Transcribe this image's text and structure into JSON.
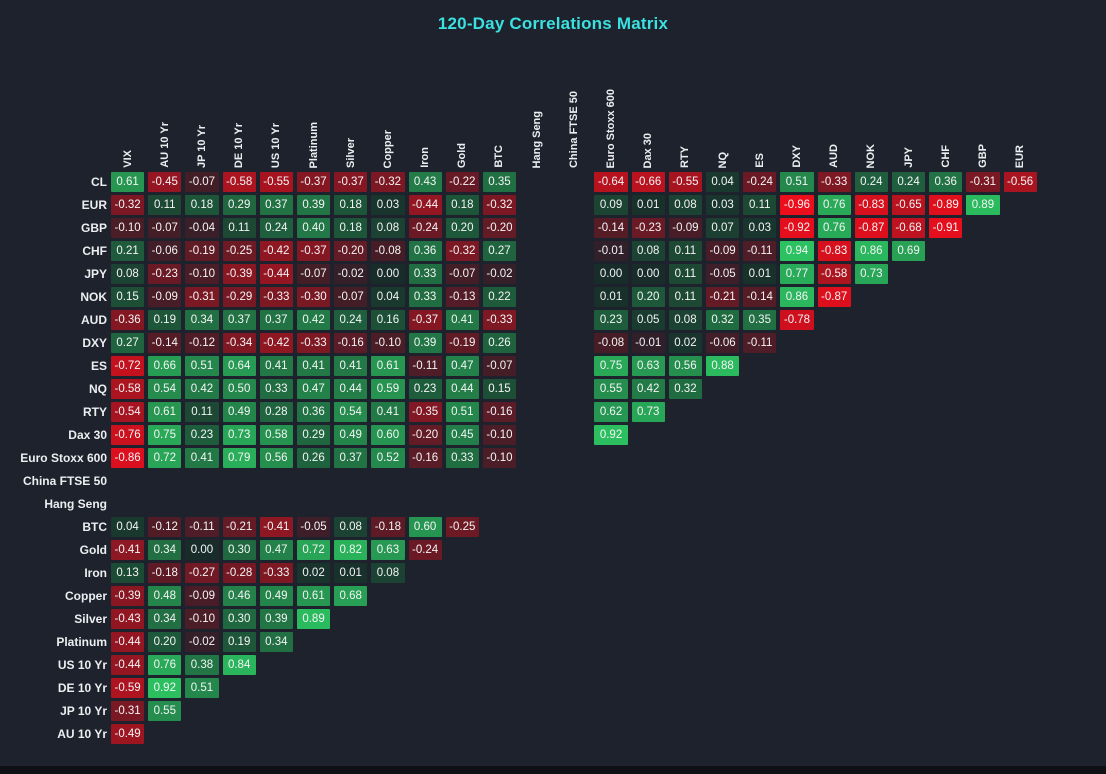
{
  "title": "120-Day Correlations Matrix",
  "colors": {
    "background": "#1d222c",
    "title": "#3be0e0",
    "cell_text": "#f4f4f5",
    "label_text": "#eceef0",
    "positive_max": "#2dc964",
    "positive_base": "#182d2a",
    "negative_max": "#f20d1b",
    "negative_base": "#2c2029",
    "bottom_strip": "#0e1016"
  },
  "chart_data": {
    "type": "heatmap",
    "title": "120-Day Correlations Matrix",
    "value_range": [
      -1,
      1
    ],
    "legend": "none",
    "columns": [
      "VIX",
      "AU 10 Yr",
      "JP 10 Yr",
      "DE 10 Yr",
      "US 10 Yr",
      "Platinum",
      "Silver",
      "Copper",
      "Iron",
      "Gold",
      "BTC",
      "Hang Seng",
      "China FTSE 50",
      "Euro Stoxx 600",
      "Dax 30",
      "RTY",
      "NQ",
      "ES",
      "DXY",
      "AUD",
      "NOK",
      "JPY",
      "CHF",
      "GBP",
      "EUR"
    ],
    "rows": [
      "CL",
      "EUR",
      "GBP",
      "CHF",
      "JPY",
      "NOK",
      "AUD",
      "DXY",
      "ES",
      "NQ",
      "RTY",
      "Dax 30",
      "Euro Stoxx 600",
      "China FTSE 50",
      "Hang Seng",
      "BTC",
      "Gold",
      "Iron",
      "Copper",
      "Silver",
      "Platinum",
      "US 10 Yr",
      "DE 10 Yr",
      "JP 10 Yr",
      "AU 10 Yr"
    ],
    "values": [
      [
        0.61,
        -0.45,
        -0.07,
        -0.58,
        -0.55,
        -0.37,
        -0.37,
        -0.32,
        0.43,
        -0.22,
        0.35,
        null,
        null,
        -0.64,
        -0.66,
        -0.55,
        0.04,
        -0.24,
        0.51,
        -0.33,
        0.24,
        0.24,
        0.36,
        -0.31,
        -0.56
      ],
      [
        -0.32,
        0.11,
        0.18,
        0.29,
        0.37,
        0.39,
        0.18,
        0.03,
        -0.44,
        0.18,
        -0.32,
        null,
        null,
        0.09,
        0.01,
        0.08,
        0.03,
        0.11,
        -0.96,
        0.76,
        -0.83,
        -0.65,
        -0.89,
        0.89,
        null
      ],
      [
        -0.1,
        -0.07,
        -0.04,
        0.11,
        0.24,
        0.4,
        0.18,
        0.08,
        -0.24,
        0.2,
        -0.2,
        null,
        null,
        -0.14,
        -0.23,
        -0.09,
        0.07,
        0.03,
        -0.92,
        0.76,
        -0.87,
        -0.68,
        -0.91,
        null,
        null
      ],
      [
        0.21,
        -0.06,
        -0.19,
        -0.25,
        -0.42,
        -0.37,
        -0.2,
        -0.08,
        0.36,
        -0.32,
        0.27,
        null,
        null,
        -0.01,
        0.08,
        0.11,
        -0.09,
        -0.11,
        0.94,
        -0.83,
        0.86,
        0.69,
        null,
        null,
        null
      ],
      [
        0.08,
        -0.23,
        -0.1,
        -0.39,
        -0.44,
        -0.07,
        -0.02,
        0.0,
        0.33,
        -0.07,
        -0.02,
        null,
        null,
        0.0,
        0.0,
        0.11,
        -0.05,
        0.01,
        0.77,
        -0.58,
        0.73,
        null,
        null,
        null,
        null
      ],
      [
        0.15,
        -0.09,
        -0.31,
        -0.29,
        -0.33,
        -0.3,
        -0.07,
        0.04,
        0.33,
        -0.13,
        0.22,
        null,
        null,
        0.01,
        0.2,
        0.11,
        -0.21,
        -0.14,
        0.86,
        -0.87,
        null,
        null,
        null,
        null,
        null
      ],
      [
        -0.36,
        0.19,
        0.34,
        0.37,
        0.37,
        0.42,
        0.24,
        0.16,
        -0.37,
        0.41,
        -0.33,
        null,
        null,
        0.23,
        0.05,
        0.08,
        0.32,
        0.35,
        -0.78,
        null,
        null,
        null,
        null,
        null,
        null
      ],
      [
        0.27,
        -0.14,
        -0.12,
        -0.34,
        -0.42,
        -0.33,
        -0.16,
        -0.1,
        0.39,
        -0.19,
        0.26,
        null,
        null,
        -0.08,
        -0.01,
        0.02,
        -0.06,
        -0.11,
        null,
        null,
        null,
        null,
        null,
        null,
        null
      ],
      [
        -0.72,
        0.66,
        0.51,
        0.64,
        0.41,
        0.41,
        0.41,
        0.61,
        -0.11,
        0.47,
        -0.07,
        null,
        null,
        0.75,
        0.63,
        0.56,
        0.88,
        null,
        null,
        null,
        null,
        null,
        null,
        null,
        null
      ],
      [
        -0.58,
        0.54,
        0.42,
        0.5,
        0.33,
        0.47,
        0.44,
        0.59,
        0.23,
        0.44,
        0.15,
        null,
        null,
        0.55,
        0.42,
        0.32,
        null,
        null,
        null,
        null,
        null,
        null,
        null,
        null,
        null
      ],
      [
        -0.54,
        0.61,
        0.11,
        0.49,
        0.28,
        0.36,
        0.54,
        0.41,
        -0.35,
        0.51,
        -0.16,
        null,
        null,
        0.62,
        0.73,
        null,
        null,
        null,
        null,
        null,
        null,
        null,
        null,
        null,
        null
      ],
      [
        -0.76,
        0.75,
        0.23,
        0.73,
        0.58,
        0.29,
        0.49,
        0.6,
        -0.2,
        0.45,
        -0.1,
        null,
        null,
        0.92,
        null,
        null,
        null,
        null,
        null,
        null,
        null,
        null,
        null,
        null,
        null
      ],
      [
        -0.86,
        0.72,
        0.41,
        0.79,
        0.56,
        0.26,
        0.37,
        0.52,
        -0.16,
        0.33,
        -0.1,
        null,
        null,
        null,
        null,
        null,
        null,
        null,
        null,
        null,
        null,
        null,
        null,
        null,
        null
      ],
      [
        null,
        null,
        null,
        null,
        null,
        null,
        null,
        null,
        null,
        null,
        null,
        null,
        null,
        null,
        null,
        null,
        null,
        null,
        null,
        null,
        null,
        null,
        null,
        null,
        null
      ],
      [
        null,
        null,
        null,
        null,
        null,
        null,
        null,
        null,
        null,
        null,
        null,
        null,
        null,
        null,
        null,
        null,
        null,
        null,
        null,
        null,
        null,
        null,
        null,
        null,
        null
      ],
      [
        0.04,
        -0.12,
        -0.11,
        -0.21,
        -0.41,
        -0.05,
        0.08,
        -0.18,
        0.6,
        -0.25,
        null,
        null,
        null,
        null,
        null,
        null,
        null,
        null,
        null,
        null,
        null,
        null,
        null,
        null,
        null
      ],
      [
        -0.41,
        0.34,
        0.0,
        0.3,
        0.47,
        0.72,
        0.82,
        0.63,
        -0.24,
        null,
        null,
        null,
        null,
        null,
        null,
        null,
        null,
        null,
        null,
        null,
        null,
        null,
        null,
        null,
        null
      ],
      [
        0.13,
        -0.18,
        -0.27,
        -0.28,
        -0.33,
        0.02,
        0.01,
        0.08,
        null,
        null,
        null,
        null,
        null,
        null,
        null,
        null,
        null,
        null,
        null,
        null,
        null,
        null,
        null,
        null,
        null
      ],
      [
        -0.39,
        0.48,
        -0.09,
        0.46,
        0.49,
        0.61,
        0.68,
        null,
        null,
        null,
        null,
        null,
        null,
        null,
        null,
        null,
        null,
        null,
        null,
        null,
        null,
        null,
        null,
        null,
        null
      ],
      [
        -0.43,
        0.34,
        -0.1,
        0.3,
        0.39,
        0.89,
        null,
        null,
        null,
        null,
        null,
        null,
        null,
        null,
        null,
        null,
        null,
        null,
        null,
        null,
        null,
        null,
        null,
        null,
        null
      ],
      [
        -0.44,
        0.2,
        -0.02,
        0.19,
        0.34,
        null,
        null,
        null,
        null,
        null,
        null,
        null,
        null,
        null,
        null,
        null,
        null,
        null,
        null,
        null,
        null,
        null,
        null,
        null,
        null
      ],
      [
        -0.44,
        0.76,
        0.38,
        0.84,
        null,
        null,
        null,
        null,
        null,
        null,
        null,
        null,
        null,
        null,
        null,
        null,
        null,
        null,
        null,
        null,
        null,
        null,
        null,
        null,
        null
      ],
      [
        -0.59,
        0.92,
        0.51,
        null,
        null,
        null,
        null,
        null,
        null,
        null,
        null,
        null,
        null,
        null,
        null,
        null,
        null,
        null,
        null,
        null,
        null,
        null,
        null,
        null,
        null
      ],
      [
        -0.31,
        0.55,
        null,
        null,
        null,
        null,
        null,
        null,
        null,
        null,
        null,
        null,
        null,
        null,
        null,
        null,
        null,
        null,
        null,
        null,
        null,
        null,
        null,
        null,
        null
      ],
      [
        -0.49,
        null,
        null,
        null,
        null,
        null,
        null,
        null,
        null,
        null,
        null,
        null,
        null,
        null,
        null,
        null,
        null,
        null,
        null,
        null,
        null,
        null,
        null,
        null,
        null
      ]
    ]
  }
}
